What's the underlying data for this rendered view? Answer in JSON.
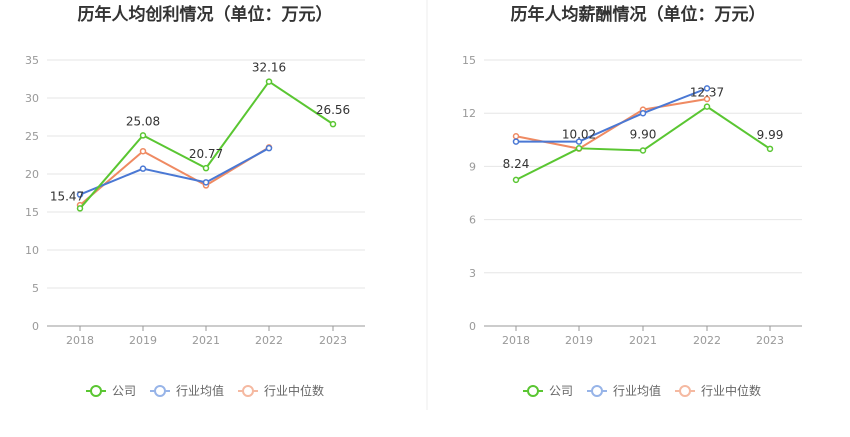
{
  "chart_data": [
    {
      "type": "line",
      "title": "历年人均创利情况（单位：万元）",
      "xlabel": "",
      "ylabel": "",
      "categories": [
        "2018",
        "2019",
        "2021",
        "2022",
        "2023"
      ],
      "ylim": [
        0,
        35
      ],
      "yticks": [
        0,
        5,
        10,
        15,
        20,
        25,
        30,
        35
      ],
      "grid": true,
      "legend_position": "bottom",
      "series": [
        {
          "name": "公司",
          "color": "#5ac632",
          "values": [
            15.47,
            25.08,
            20.77,
            32.16,
            26.56
          ],
          "labels": [
            "15.47",
            "25.08",
            "20.77",
            "32.16",
            "26.56"
          ]
        },
        {
          "name": "行业均值",
          "color": "#4a78d4",
          "values": [
            17.3,
            20.7,
            18.9,
            23.4,
            null
          ]
        },
        {
          "name": "行业中位数",
          "color": "#ef8a62",
          "values": [
            15.9,
            23.0,
            18.5,
            23.5,
            null
          ]
        }
      ]
    },
    {
      "type": "line",
      "title": "历年人均薪酬情况（单位：万元）",
      "xlabel": "",
      "ylabel": "",
      "categories": [
        "2018",
        "2019",
        "2021",
        "2022",
        "2023"
      ],
      "ylim": [
        0,
        15
      ],
      "yticks": [
        0,
        3,
        6,
        9,
        12,
        15
      ],
      "grid": true,
      "legend_position": "bottom",
      "series": [
        {
          "name": "公司",
          "color": "#5ac632",
          "values": [
            8.24,
            10.02,
            9.9,
            12.37,
            9.99
          ],
          "labels": [
            "8.24",
            "10.02",
            "9.90",
            "12.37",
            "9.99"
          ]
        },
        {
          "name": "行业均值",
          "color": "#4a78d4",
          "values": [
            10.4,
            10.4,
            12.0,
            13.4,
            null
          ]
        },
        {
          "name": "行业中位数",
          "color": "#ef8a62",
          "values": [
            10.7,
            10.0,
            12.2,
            12.8,
            null
          ]
        }
      ]
    }
  ],
  "legend": {
    "items": [
      {
        "name": "公司",
        "color": "#5ac632"
      },
      {
        "name": "行业均值",
        "color": "#97b4e8"
      },
      {
        "name": "行业中位数",
        "color": "#f5b9a1"
      }
    ]
  }
}
